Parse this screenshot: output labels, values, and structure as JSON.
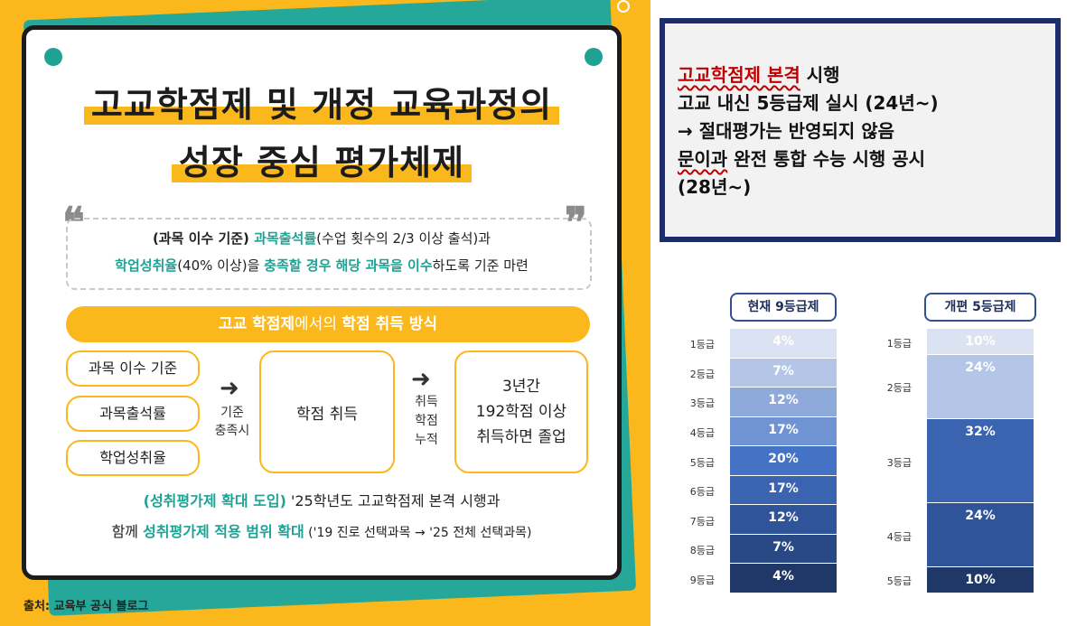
{
  "infographic": {
    "title_line1": "고교학점제 및 개정 교육과정의",
    "title_line2": "성장 중심 평가체제",
    "quote": {
      "line1_a": "(과목 이수 기준) ",
      "line1_b": "과목출석률",
      "line1_c": "(수업 횟수의 2/3 이상 출석)과",
      "line2_a": "학업성취율",
      "line2_b": "(40% 이상)을 ",
      "line2_c": "충족할 경우 해당 과목을 이수",
      "line2_d": "하도록 기준 마련"
    },
    "banner": {
      "a": "고교 학점제",
      "b": "에서의 ",
      "c": "학점 취득 방식"
    },
    "criteria": [
      "과목 이수 기준",
      "과목출석률",
      "학업성취율"
    ],
    "condition_label": "기준\n충족시",
    "credit_box": "학점 취득",
    "accumulate_label": "취득\n학점\n누적",
    "graduate_box": "3년간\n192학점 이상\n취득하면 졸업",
    "footer": {
      "line1_a": "(성취평가제 확대 도입)",
      "line1_b": " '25학년도 고교학점제 본격 시행과",
      "line2_a": "함께 ",
      "line2_b": "성취평가제 적용 범위 확대",
      "line2_c": " ('19 진로 선택과목 → '25 전체 선택과목)"
    },
    "source": "출처: 교육부 공식 블로그"
  },
  "panel": {
    "line1_red": "고교학점제 본격",
    "line1_rest": " 시행",
    "line2": "고교 내신 5등급제 실시 (24년~)",
    "line3": "→ 절대평가는 반영되지 않음",
    "line4_wavy": "문이과",
    "line4_rest": " 완전 통합 수능 시행 공시",
    "line5": "(28년~)"
  },
  "chart_data": {
    "type": "bar",
    "title": "",
    "series": [
      {
        "name": "현재 9등급제",
        "categories": [
          "1등급",
          "2등급",
          "3등급",
          "4등급",
          "5등급",
          "6등급",
          "7등급",
          "8등급",
          "9등급"
        ],
        "values": [
          4,
          7,
          12,
          17,
          20,
          17,
          12,
          7,
          4
        ],
        "labels": [
          "4%",
          "7%",
          "12%",
          "17%",
          "20%",
          "17%",
          "12%",
          "7%",
          "4%"
        ],
        "colors": [
          "#dbe3f2",
          "#b4c6e7",
          "#8eaadb",
          "#6f93d3",
          "#4472c4",
          "#3a64b0",
          "#2f549a",
          "#294984",
          "#1f3868"
        ]
      },
      {
        "name": "개편 5등급제",
        "categories": [
          "1등급",
          "2등급",
          "3등급",
          "4등급",
          "5등급"
        ],
        "values": [
          10,
          24,
          32,
          24,
          10
        ],
        "labels": [
          "10%",
          "24%",
          "32%",
          "24%",
          "10%"
        ],
        "colors": [
          "#dbe3f2",
          "#b4c6e7",
          "#3a64b0",
          "#2f549a",
          "#1f3868"
        ]
      }
    ]
  }
}
